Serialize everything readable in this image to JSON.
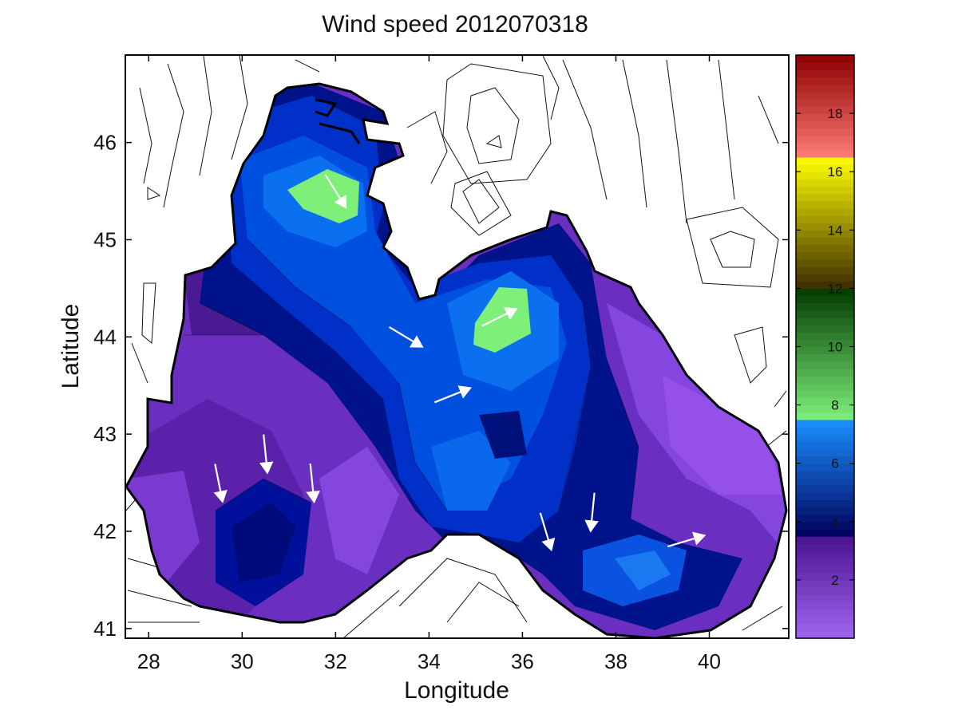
{
  "chart_data": {
    "type": "heatmap",
    "title": "Wind speed 2012070318",
    "xlabel": "Longitude",
    "ylabel": "Latitude",
    "xlim": [
      27.5,
      41.7
    ],
    "ylim": [
      40.9,
      46.9
    ],
    "xticks": [
      28,
      30,
      32,
      34,
      36,
      38,
      40
    ],
    "yticks": [
      41,
      42,
      43,
      44,
      45,
      46
    ],
    "grid": false,
    "colorbar": {
      "position": "right",
      "range": [
        0,
        20
      ],
      "ticks": [
        2,
        4,
        6,
        8,
        10,
        12,
        14,
        16,
        18
      ],
      "colors": {
        "purple_low": "#a066ee",
        "purple_high": "#4a1390",
        "blue_low": "#00005a",
        "blue_high": "#1a90ff",
        "green_light": "#7ef07a",
        "green_dark": "#003a00",
        "olive": "#3c2c00",
        "yellow": "#ffff00",
        "red_light": "#ff7c78",
        "red_dark": "#8c0000"
      }
    },
    "wind_speed_regions": [
      {
        "level": 7.5,
        "lon": 31.9,
        "lat": 45.5
      },
      {
        "level": 7.5,
        "lon": 35.6,
        "lat": 44.25
      },
      {
        "level": 6.0,
        "lon": 32.3,
        "lat": 45.3
      },
      {
        "level": 6.0,
        "lon": 35.3,
        "lat": 43.8
      },
      {
        "level": 5.5,
        "lon": 35.0,
        "lat": 42.6
      },
      {
        "level": 5.0,
        "lon": 38.7,
        "lat": 41.5
      },
      {
        "level": 4.2,
        "lon": 30.5,
        "lat": 41.9
      },
      {
        "level": 2.5,
        "lon": 29.0,
        "lat": 43.2
      },
      {
        "level": 2.0,
        "lon": 40.0,
        "lat": 42.5
      }
    ],
    "wind_vectors_sample": [
      {
        "lon": 29.5,
        "lat": 42.5,
        "u": 0.2,
        "v": -1.0
      },
      {
        "lon": 30.5,
        "lat": 42.8,
        "u": 0.1,
        "v": -1.0
      },
      {
        "lon": 31.5,
        "lat": 42.5,
        "u": 0.1,
        "v": -1.0
      },
      {
        "lon": 32.0,
        "lat": 45.5,
        "u": 0.5,
        "v": -0.8
      },
      {
        "lon": 33.5,
        "lat": 44.0,
        "u": 1.0,
        "v": -0.6
      },
      {
        "lon": 34.5,
        "lat": 43.4,
        "u": 1.0,
        "v": 0.4
      },
      {
        "lon": 35.5,
        "lat": 44.2,
        "u": 1.0,
        "v": 0.5
      },
      {
        "lon": 36.5,
        "lat": 42.0,
        "u": 0.3,
        "v": -1.0
      },
      {
        "lon": 37.5,
        "lat": 42.2,
        "u": -0.1,
        "v": -1.0
      },
      {
        "lon": 39.5,
        "lat": 41.9,
        "u": 1.0,
        "v": 0.3
      }
    ]
  }
}
